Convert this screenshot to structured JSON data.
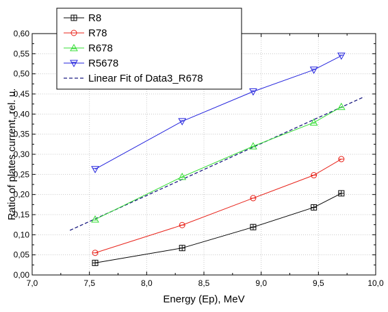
{
  "chart_data": {
    "type": "line",
    "xlabel": "Energy (Ep), MeV",
    "ylabel": "Ratio of plates current, rel. u.",
    "xlim": [
      7.0,
      10.0
    ],
    "ylim": [
      0.0,
      0.6
    ],
    "x_ticks": [
      "7,0",
      "7,5",
      "8,0",
      "8,5",
      "9,0",
      "9,5",
      "10,0"
    ],
    "x_tick_values": [
      7.0,
      7.5,
      8.0,
      8.5,
      9.0,
      9.5,
      10.0
    ],
    "y_ticks": [
      "0,00",
      "0,05",
      "0,10",
      "0,15",
      "0,20",
      "0,25",
      "0,30",
      "0,35",
      "0,40",
      "0,45",
      "0,50",
      "0,55",
      "0,60"
    ],
    "y_tick_values": [
      0.0,
      0.05,
      0.1,
      0.15,
      0.2,
      0.25,
      0.3,
      0.35,
      0.4,
      0.45,
      0.5,
      0.55,
      0.6
    ],
    "grid": true,
    "legend_position": "top-left",
    "series": [
      {
        "name": "R8",
        "color": "#000000",
        "marker": "square",
        "x": [
          7.55,
          8.31,
          8.93,
          9.46,
          9.7
        ],
        "y": [
          0.03,
          0.067,
          0.119,
          0.168,
          0.203
        ]
      },
      {
        "name": "R78",
        "color": "#e8231a",
        "marker": "circle",
        "x": [
          7.55,
          8.31,
          8.93,
          9.46,
          9.7
        ],
        "y": [
          0.055,
          0.124,
          0.191,
          0.248,
          0.288
        ]
      },
      {
        "name": "R678",
        "color": "#33dd33",
        "marker": "triangle-up",
        "x": [
          7.55,
          8.31,
          8.93,
          9.46,
          9.7
        ],
        "y": [
          0.138,
          0.244,
          0.32,
          0.379,
          0.418
        ]
      },
      {
        "name": "R5678",
        "color": "#2222dd",
        "marker": "triangle-down",
        "x": [
          7.55,
          8.31,
          8.93,
          9.46,
          9.7
        ],
        "y": [
          0.263,
          0.382,
          0.456,
          0.51,
          0.545
        ]
      }
    ],
    "fit": {
      "name": "Linear Fit of Data3_R678",
      "color": "#1a1a80",
      "style": "dashed",
      "x": [
        7.33,
        9.9
      ],
      "y": [
        0.111,
        0.443
      ]
    }
  }
}
